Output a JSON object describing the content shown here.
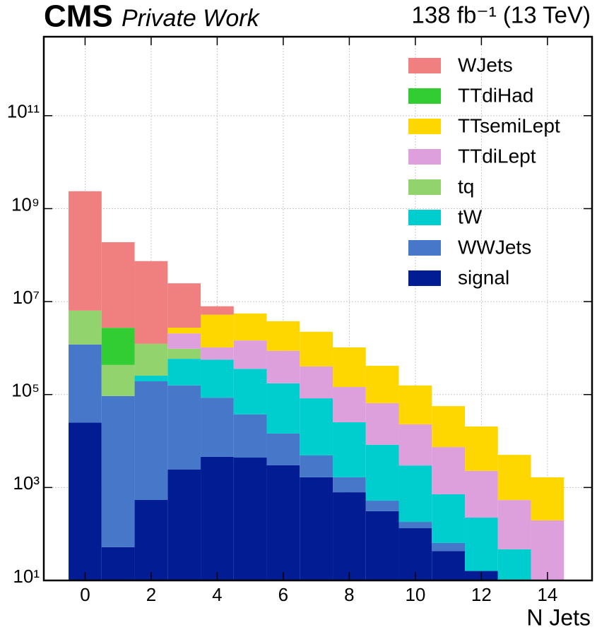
{
  "chart_data": {
    "type": "stacked-histogram",
    "experiment": "CMS",
    "subtitle": "Private Work",
    "lumi": "138 fb⁻¹ (13 TeV)",
    "x_label": "N Jets",
    "bins": [
      -0.5,
      0.5,
      1.5,
      2.5,
      3.5,
      4.5,
      5.5,
      6.5,
      7.5,
      8.5,
      9.5,
      10.5,
      11.5,
      12.5,
      13.5,
      14.5
    ],
    "series": [
      {
        "name": "signal",
        "color": "#021c93",
        "values": [
          25000,
          52,
          540,
          2430,
          4570,
          4400,
          3000,
          1660,
          790,
          310,
          133,
          43,
          16,
          0,
          0
        ]
      },
      {
        "name": "WWJets",
        "color": "#4677c9",
        "values": [
          1170000,
          93000,
          192000,
          155000,
          81000,
          33000,
          11500,
          3240,
          870,
          210,
          49,
          21,
          0,
          0,
          0
        ]
      },
      {
        "name": "tW",
        "color": "#00cdcd",
        "values": [
          0,
          0,
          62000,
          430000,
          480000,
          320000,
          160000,
          78000,
          23700,
          7800,
          2800,
          650,
          209,
          47,
          0
        ]
      },
      {
        "name": "tq",
        "color": "#92d36e",
        "values": [
          5200000,
          340000,
          980000,
          380000,
          0,
          0,
          0,
          0,
          0,
          0,
          0,
          0,
          0,
          0,
          0
        ]
      },
      {
        "name": "TTdiLept",
        "color": "#dda0dd",
        "values": [
          0,
          0,
          0,
          1100000,
          470000,
          1100000,
          700000,
          320000,
          120000,
          57000,
          19900,
          6700,
          2050,
          490,
          196
        ]
      },
      {
        "name": "TTsemiLept",
        "color": "#ffd700",
        "values": [
          0,
          0,
          0,
          680000,
          4200000,
          4100000,
          2900000,
          1840000,
          890000,
          350000,
          134000,
          49000,
          18300,
          4500,
          1460
        ]
      },
      {
        "name": "TTdiHad",
        "color": "#32cd32",
        "values": [
          0,
          2300000,
          0,
          0,
          0,
          0,
          0,
          0,
          0,
          0,
          0,
          0,
          0,
          0,
          0
        ]
      },
      {
        "name": "WJets",
        "color": "#f08080",
        "values": [
          2360000000,
          187000000,
          73000000,
          22000000,
          2700000,
          0,
          0,
          0,
          0,
          0,
          0,
          0,
          0,
          0,
          0
        ]
      }
    ],
    "xlim": [
      -1.25,
      15.35
    ],
    "xticks": [
      0,
      2,
      4,
      6,
      8,
      10,
      12,
      14
    ],
    "ylim": [
      10,
      5000000000000
    ],
    "log_y": true,
    "yticks": [
      {
        "value": 10,
        "label": "10¹"
      },
      {
        "value": 1000,
        "label": "10³"
      },
      {
        "value": 100000,
        "label": "10⁵"
      },
      {
        "value": 10000000,
        "label": "10⁷"
      },
      {
        "value": 1000000000,
        "label": "10⁹"
      },
      {
        "value": 100000000000,
        "label": "10¹¹"
      }
    ],
    "grid": true,
    "legend": "upper right"
  }
}
